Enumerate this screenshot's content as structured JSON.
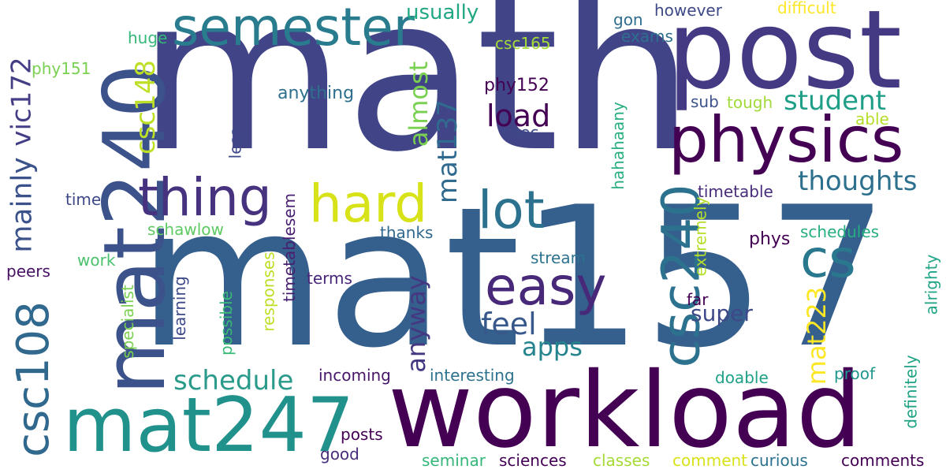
{
  "cloud": {
    "words": [
      {
        "id": "math",
        "text": "math",
        "color": "#414487"
      },
      {
        "id": "mat157",
        "text": "mat157",
        "color": "#355f8d"
      },
      {
        "id": "workload",
        "text": "workload",
        "color": "#440154"
      },
      {
        "id": "post",
        "text": "post",
        "color": "#443983"
      },
      {
        "id": "mat240",
        "text": "mat240",
        "color": "#3b528b"
      },
      {
        "id": "mat247",
        "text": "mat247",
        "color": "#21918c"
      },
      {
        "id": "semester",
        "text": "semester",
        "color": "#287c8e"
      },
      {
        "id": "physics",
        "text": "physics",
        "color": "#440154"
      },
      {
        "id": "thing",
        "text": "thing",
        "color": "#46327e"
      },
      {
        "id": "hard",
        "text": "hard",
        "color": "#d8e219"
      },
      {
        "id": "lot",
        "text": "lot",
        "color": "#2c728e"
      },
      {
        "id": "easy",
        "text": "easy",
        "color": "#482878"
      },
      {
        "id": "cs",
        "text": "cs",
        "color": "#2a788e"
      },
      {
        "id": "csc240",
        "text": "csc240",
        "color": "#2c728e"
      },
      {
        "id": "csc108",
        "text": "csc108",
        "color": "#31688e"
      },
      {
        "id": "mainly",
        "text": "mainly",
        "color": "#3b528b"
      },
      {
        "id": "vic172",
        "text": "vic172",
        "color": "#433e85"
      },
      {
        "id": "csc148",
        "text": "csc148",
        "color": "#bddf26"
      },
      {
        "id": "mat137",
        "text": "mat137",
        "color": "#306a8e"
      },
      {
        "id": "almost",
        "text": "almost",
        "color": "#7ad151"
      },
      {
        "id": "student",
        "text": "student",
        "color": "#1f9f88"
      },
      {
        "id": "thoughts",
        "text": "thoughts",
        "color": "#2d708e"
      },
      {
        "id": "load",
        "text": "load",
        "color": "#440154"
      },
      {
        "id": "feel",
        "text": "feel",
        "color": "#38588c"
      },
      {
        "id": "anyway",
        "text": "anyway",
        "color": "#453882"
      },
      {
        "id": "apps",
        "text": "apps",
        "color": "#25848e"
      },
      {
        "id": "schedule",
        "text": "schedule",
        "color": "#2a9a8a"
      },
      {
        "id": "mat223",
        "text": "mat223",
        "color": "#fde725"
      },
      {
        "id": "usually",
        "text": "usually",
        "color": "#22a785"
      },
      {
        "id": "anything",
        "text": "anything",
        "color": "#2e6f8e"
      },
      {
        "id": "huge",
        "text": "huge",
        "color": "#35b779"
      },
      {
        "id": "phy151",
        "text": "phy151",
        "color": "#7ad151"
      },
      {
        "id": "csc165",
        "text": "csc165",
        "color": "#a5db36"
      },
      {
        "id": "phy152",
        "text": "phy152",
        "color": "#440154"
      },
      {
        "id": "gon",
        "text": "gon",
        "color": "#2f6c8e"
      },
      {
        "id": "exams",
        "text": "exams",
        "color": "#2e6e8e"
      },
      {
        "id": "however",
        "text": "however",
        "color": "#3e4989"
      },
      {
        "id": "difficult",
        "text": "difficult",
        "color": "#fde725"
      },
      {
        "id": "sub",
        "text": "sub",
        "color": "#3b528b"
      },
      {
        "id": "tough",
        "text": "tough",
        "color": "#a0da39"
      },
      {
        "id": "able",
        "text": "able",
        "color": "#b5de2b"
      },
      {
        "id": "spec",
        "text": "spec",
        "color": "#3e4989"
      },
      {
        "id": "hahahaany",
        "text": "hahahaany",
        "color": "#29af7f"
      },
      {
        "id": "extremely",
        "text": "extremely",
        "color": "#b5de2b"
      },
      {
        "id": "timetable",
        "text": "timetable",
        "color": "#472d7b"
      },
      {
        "id": "less",
        "text": "less",
        "color": "#3e4989"
      },
      {
        "id": "time",
        "text": "time",
        "color": "#3e4989"
      },
      {
        "id": "timetablesem",
        "text": "timetablesem",
        "color": "#481f70"
      },
      {
        "id": "schawlow",
        "text": "schawlow",
        "color": "#5ec962"
      },
      {
        "id": "thanks",
        "text": "thanks",
        "color": "#31688e"
      },
      {
        "id": "work",
        "text": "work",
        "color": "#4ac16d"
      },
      {
        "id": "stream",
        "text": "stream",
        "color": "#2c728e"
      },
      {
        "id": "phys",
        "text": "phys",
        "color": "#440154"
      },
      {
        "id": "schedules",
        "text": "schedules",
        "color": "#26ad81"
      },
      {
        "id": "peers",
        "text": "peers",
        "color": "#471164"
      },
      {
        "id": "terms",
        "text": "terms",
        "color": "#482576"
      },
      {
        "id": "learning",
        "text": "learning",
        "color": "#3e4989"
      },
      {
        "id": "responses",
        "text": "responses",
        "color": "#bddf26"
      },
      {
        "id": "specialist",
        "text": "specialist",
        "color": "#7ad151"
      },
      {
        "id": "possible",
        "text": "possible",
        "color": "#3aba76"
      },
      {
        "id": "super",
        "text": "super",
        "color": "#3e4989"
      },
      {
        "id": "far",
        "text": "far",
        "color": "#440154"
      },
      {
        "id": "alrighty",
        "text": "alrighty",
        "color": "#20a486"
      },
      {
        "id": "definitely",
        "text": "definitely",
        "color": "#20a486"
      },
      {
        "id": "incoming",
        "text": "incoming",
        "color": "#481769"
      },
      {
        "id": "interesting",
        "text": "interesting",
        "color": "#2c728e"
      },
      {
        "id": "doable",
        "text": "doable",
        "color": "#1fa187"
      },
      {
        "id": "proof",
        "text": "proof",
        "color": "#1f988b"
      },
      {
        "id": "posts",
        "text": "posts",
        "color": "#440154"
      },
      {
        "id": "good",
        "text": "good",
        "color": "#472d7b"
      },
      {
        "id": "seminar",
        "text": "seminar",
        "color": "#35b779"
      },
      {
        "id": "sciences",
        "text": "sciences",
        "color": "#440154"
      },
      {
        "id": "classes",
        "text": "classes",
        "color": "#a5db36"
      },
      {
        "id": "comment",
        "text": "comment",
        "color": "#d8e219"
      },
      {
        "id": "curious",
        "text": "curious",
        "color": "#2c728e"
      },
      {
        "id": "comments",
        "text": "comments",
        "color": "#440154"
      }
    ]
  }
}
